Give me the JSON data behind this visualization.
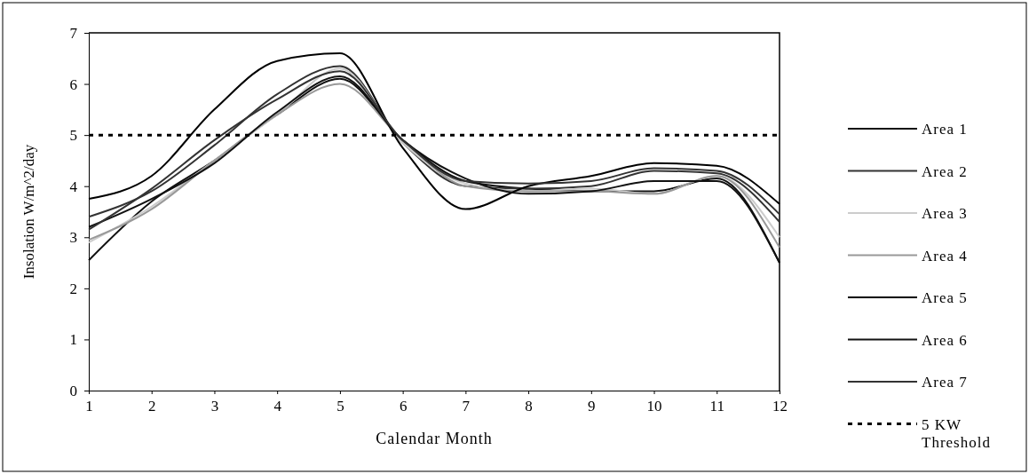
{
  "chart_data": {
    "type": "line",
    "xlabel": "Calendar Month",
    "ylabel": "Insolation W/m^2/day",
    "x": [
      1,
      2,
      3,
      4,
      5,
      6,
      7,
      8,
      9,
      10,
      11,
      12
    ],
    "xlim": [
      1,
      12
    ],
    "xticks": [
      1,
      2,
      3,
      4,
      5,
      6,
      7,
      8,
      9,
      10,
      11,
      12
    ],
    "ylim": [
      0,
      7
    ],
    "yticks": [
      0,
      1,
      2,
      3,
      4,
      5,
      6,
      7
    ],
    "grid": false,
    "legend": "right",
    "line_style": "solid",
    "marker": "none",
    "series": [
      {
        "name": "Area 1",
        "color": "#111111",
        "values": [
          2.55,
          3.7,
          4.5,
          5.4,
          6.1,
          4.9,
          4.1,
          3.95,
          3.9,
          3.9,
          4.15,
          2.5
        ]
      },
      {
        "name": "Area 2",
        "color": "#333333",
        "values": [
          3.4,
          3.9,
          4.8,
          5.8,
          6.35,
          4.85,
          4.0,
          3.95,
          4.0,
          4.3,
          4.25,
          3.3
        ]
      },
      {
        "name": "Area 3",
        "color": "#cccccc",
        "values": [
          2.9,
          3.6,
          4.5,
          5.4,
          6.3,
          4.85,
          4.05,
          3.9,
          3.95,
          3.85,
          4.2,
          3.0
        ]
      },
      {
        "name": "Area 4",
        "color": "#999999",
        "values": [
          2.95,
          3.55,
          4.5,
          5.4,
          6.0,
          4.9,
          4.0,
          3.9,
          3.9,
          3.85,
          4.2,
          2.8
        ]
      },
      {
        "name": "Area 5",
        "color": "#000000",
        "values": [
          3.75,
          4.2,
          5.5,
          6.45,
          6.6,
          4.75,
          3.55,
          4.0,
          4.2,
          4.45,
          4.4,
          3.65
        ]
      },
      {
        "name": "Area 6",
        "color": "#111111",
        "values": [
          3.2,
          3.75,
          4.45,
          5.45,
          6.15,
          4.9,
          4.15,
          3.85,
          3.9,
          4.1,
          4.1,
          2.5
        ]
      },
      {
        "name": "Area 7",
        "color": "#333333",
        "values": [
          3.15,
          3.95,
          4.9,
          5.7,
          6.25,
          4.9,
          4.1,
          4.05,
          4.1,
          4.35,
          4.3,
          3.45
        ]
      }
    ],
    "ref_lines": [
      {
        "axis": "y",
        "value": 5,
        "label": "5 KW Threshold",
        "color": "#000000",
        "line_style": "dashed"
      }
    ]
  }
}
